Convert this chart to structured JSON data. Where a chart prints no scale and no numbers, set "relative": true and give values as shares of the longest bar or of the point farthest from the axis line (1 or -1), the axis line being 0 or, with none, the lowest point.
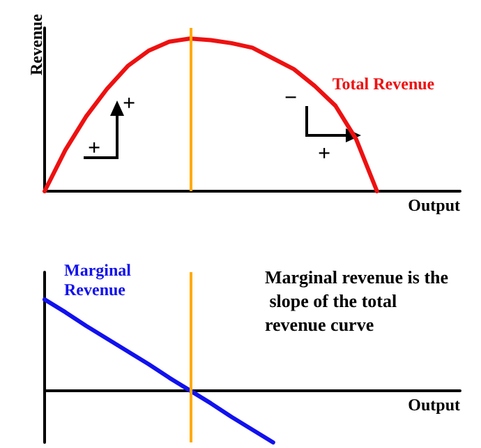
{
  "chart_data": [
    {
      "type": "line",
      "relative": true,
      "ylabel": "Revenue",
      "xlabel": "Output",
      "tick_labels": false,
      "categories": [
        null,
        null,
        null,
        null,
        null,
        null,
        null,
        null,
        null,
        null,
        null,
        null,
        null,
        null,
        null,
        null,
        null,
        null,
        null,
        null,
        null
      ],
      "series": [
        {
          "name": "Total Revenue",
          "color": "#ee1111",
          "values": [
            0,
            0.27,
            0.49,
            0.67,
            0.82,
            0.92,
            0.98,
            1,
            0.99,
            0.97,
            0.94,
            0.87,
            0.8,
            0.69,
            0.56,
            0.34,
            0,
            null,
            null,
            null,
            null
          ]
        }
      ],
      "annotations": [
        "+",
        "+",
        "−",
        "+"
      ]
    },
    {
      "type": "line",
      "relative": true,
      "xlabel": "Output",
      "tick_labels": false,
      "categories": [
        null,
        null,
        null,
        null,
        null,
        null,
        null,
        null,
        null,
        null,
        null,
        null,
        null,
        null,
        null,
        null,
        null,
        null,
        null,
        null,
        null
      ],
      "series": [
        {
          "name": "Marginal Revenue",
          "color": "#1111ee",
          "values": [
            1,
            0.86,
            0.71,
            0.57,
            0.43,
            0.29,
            0.14,
            0,
            -0.14,
            -0.29,
            -0.43,
            -0.57,
            null,
            null,
            null,
            null,
            null,
            null,
            null,
            null,
            null
          ]
        }
      ],
      "annotations": [
        "Marginal revenue is the slope of the total revenue curve"
      ]
    }
  ]
}
